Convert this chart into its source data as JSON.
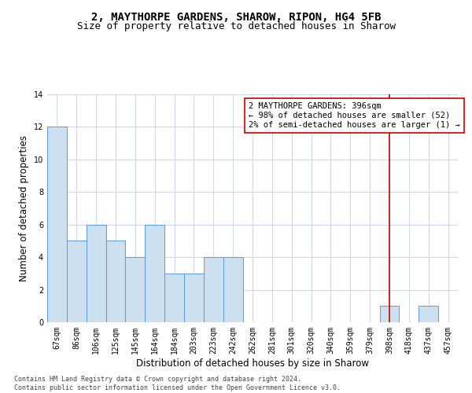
{
  "title_line1": "2, MAYTHORPE GARDENS, SHAROW, RIPON, HG4 5FB",
  "title_line2": "Size of property relative to detached houses in Sharow",
  "xlabel": "Distribution of detached houses by size in Sharow",
  "ylabel": "Number of detached properties",
  "bar_labels": [
    "67sqm",
    "86sqm",
    "106sqm",
    "125sqm",
    "145sqm",
    "164sqm",
    "184sqm",
    "203sqm",
    "223sqm",
    "242sqm",
    "262sqm",
    "281sqm",
    "301sqm",
    "320sqm",
    "340sqm",
    "359sqm",
    "379sqm",
    "398sqm",
    "418sqm",
    "437sqm",
    "457sqm"
  ],
  "bar_values": [
    12,
    5,
    6,
    5,
    4,
    6,
    3,
    3,
    4,
    4,
    0,
    0,
    0,
    0,
    0,
    0,
    0,
    1,
    0,
    1,
    0
  ],
  "bar_color": "#cce0f0",
  "bar_edge_color": "#5b9bd5",
  "vline_x_index": 17,
  "vline_color": "#cc0000",
  "annotation_text": "2 MAYTHORPE GARDENS: 396sqm\n← 98% of detached houses are smaller (52)\n2% of semi-detached houses are larger (1) →",
  "annotation_box_color": "#ffffff",
  "annotation_box_edge_color": "#cc0000",
  "ylim": [
    0,
    14
  ],
  "yticks": [
    0,
    2,
    4,
    6,
    8,
    10,
    12,
    14
  ],
  "grid_color": "#d0d8e8",
  "background_color": "#ffffff",
  "footnote": "Contains HM Land Registry data © Crown copyright and database right 2024.\nContains public sector information licensed under the Open Government Licence v3.0.",
  "title_fontsize": 10,
  "subtitle_fontsize": 9,
  "axis_label_fontsize": 8.5,
  "tick_fontsize": 7,
  "annotation_fontsize": 7.5,
  "footnote_fontsize": 6
}
